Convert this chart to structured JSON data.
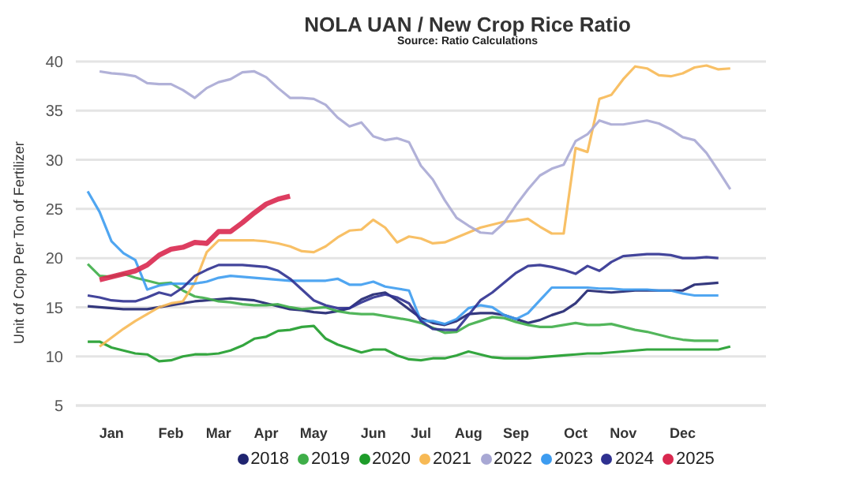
{
  "chart_data": {
    "type": "line",
    "title": "NOLA UAN / New Crop Rice Ratio",
    "subtitle": "Source: Ratio Calculations",
    "ylabel": "Unit of Crop Per Ton of Fertilizer",
    "categories": [
      null,
      null,
      null,
      "Jan",
      null,
      null,
      null,
      null,
      "Feb",
      null,
      null,
      null,
      "Mar",
      null,
      null,
      null,
      "Apr",
      null,
      null,
      null,
      "May",
      null,
      null,
      null,
      null,
      "Jun",
      null,
      null,
      null,
      "Jul",
      null,
      null,
      null,
      "Aug",
      null,
      null,
      null,
      "Sep",
      null,
      null,
      null,
      null,
      "Oct",
      null,
      null,
      null,
      "Nov",
      null,
      null,
      null,
      null,
      "Dec",
      null,
      null,
      null,
      null,
      null,
      null,
      null
    ],
    "ylim": [
      5,
      40
    ],
    "yticks": [
      5,
      10,
      15,
      20,
      25,
      30,
      35,
      40
    ],
    "grid": "y",
    "legend": "bottom",
    "marker": "none",
    "line_style": "solid",
    "series": [
      {
        "name": "2018",
        "color": "#1f2470",
        "values": [
          null,
          15.1,
          15.0,
          14.9,
          14.8,
          14.8,
          14.8,
          15.0,
          15.2,
          15.4,
          15.6,
          15.7,
          15.8,
          15.9,
          15.8,
          15.7,
          15.4,
          15.1,
          14.8,
          14.7,
          14.5,
          14.4,
          14.6,
          14.9,
          15.8,
          16.3,
          16.5,
          15.7,
          14.8,
          13.9,
          13.4,
          13.2,
          13.6,
          14.3,
          14.4,
          14.4,
          14.2,
          13.8,
          13.4,
          13.7,
          14.2,
          14.6,
          15.4,
          16.7,
          16.6,
          16.5,
          16.6,
          16.7,
          16.7,
          16.7,
          16.7,
          16.7,
          17.3,
          17.4,
          17.5,
          null,
          null,
          null,
          null
        ]
      },
      {
        "name": "2019",
        "color": "#3fae49",
        "values": [
          null,
          19.4,
          18.2,
          18.1,
          18.4,
          18.0,
          17.7,
          17.4,
          17.5,
          16.7,
          16.1,
          15.9,
          15.6,
          15.5,
          15.3,
          15.2,
          15.2,
          15.3,
          15.0,
          14.8,
          14.9,
          15.0,
          14.6,
          14.4,
          14.3,
          14.3,
          14.1,
          13.9,
          13.7,
          13.4,
          12.9,
          12.4,
          12.5,
          13.2,
          13.6,
          14.0,
          13.9,
          13.5,
          13.2,
          13.0,
          13.0,
          13.2,
          13.4,
          13.2,
          13.2,
          13.3,
          13.0,
          12.7,
          12.5,
          12.2,
          11.9,
          11.7,
          11.6,
          11.6,
          11.6,
          null,
          null,
          null,
          null
        ]
      },
      {
        "name": "2020",
        "color": "#1e9c2a",
        "values": [
          null,
          11.5,
          11.5,
          10.9,
          10.6,
          10.3,
          10.2,
          9.5,
          9.6,
          10.0,
          10.2,
          10.2,
          10.3,
          10.6,
          11.1,
          11.8,
          12.0,
          12.6,
          12.7,
          13.0,
          13.1,
          11.8,
          11.2,
          10.8,
          10.4,
          10.7,
          10.7,
          10.1,
          9.7,
          9.6,
          9.8,
          9.8,
          10.1,
          10.5,
          10.2,
          9.9,
          9.8,
          9.8,
          9.8,
          9.9,
          10.0,
          10.1,
          10.2,
          10.3,
          10.3,
          10.4,
          10.5,
          10.6,
          10.7,
          10.7,
          10.7,
          10.7,
          10.7,
          10.7,
          10.7,
          11.0,
          null,
          null,
          null
        ]
      },
      {
        "name": "2021",
        "color": "#f7b955",
        "values": [
          null,
          null,
          11.0,
          11.9,
          12.8,
          13.6,
          14.3,
          15.0,
          15.4,
          15.6,
          17.5,
          20.6,
          21.8,
          21.8,
          21.8,
          21.8,
          21.7,
          21.5,
          21.2,
          20.7,
          20.6,
          21.2,
          22.1,
          22.8,
          22.9,
          23.9,
          23.1,
          21.6,
          22.2,
          22.0,
          21.5,
          21.6,
          22.1,
          22.6,
          23.1,
          23.4,
          23.7,
          23.8,
          24.0,
          23.2,
          22.5,
          22.5,
          31.2,
          30.8,
          36.2,
          36.6,
          38.2,
          39.5,
          39.3,
          38.6,
          38.5,
          38.8,
          39.4,
          39.6,
          39.2,
          39.3,
          null,
          null,
          null
        ]
      },
      {
        "name": "2022",
        "color": "#a8a8d4",
        "values": [
          null,
          null,
          39.0,
          38.8,
          38.7,
          38.5,
          37.8,
          37.7,
          37.7,
          37.1,
          36.3,
          37.3,
          37.9,
          38.2,
          38.9,
          39.0,
          38.4,
          37.3,
          36.3,
          36.3,
          36.2,
          35.6,
          34.3,
          33.4,
          33.8,
          32.4,
          32.0,
          32.2,
          31.8,
          29.4,
          28.0,
          25.9,
          24.1,
          23.3,
          22.6,
          22.5,
          23.6,
          25.4,
          27.0,
          28.4,
          29.1,
          29.5,
          31.9,
          32.6,
          34.0,
          33.6,
          33.6,
          33.8,
          34.0,
          33.7,
          33.1,
          32.3,
          32.0,
          30.7,
          28.9,
          27.0,
          null,
          null,
          null
        ]
      },
      {
        "name": "2023",
        "color": "#3d9cf0",
        "values": [
          null,
          26.8,
          24.7,
          21.7,
          20.5,
          19.8,
          16.8,
          17.2,
          17.4,
          17.4,
          17.4,
          17.6,
          18.0,
          18.2,
          18.1,
          18.0,
          17.9,
          17.8,
          17.7,
          17.7,
          17.7,
          17.7,
          17.9,
          17.3,
          17.3,
          17.6,
          17.1,
          16.9,
          16.7,
          13.6,
          13.6,
          13.3,
          13.8,
          14.9,
          15.2,
          15.0,
          14.2,
          13.8,
          14.4,
          15.7,
          17.0,
          17.0,
          17.0,
          17.0,
          16.9,
          16.9,
          16.8,
          16.8,
          16.8,
          16.7,
          16.7,
          16.4,
          16.2,
          16.2,
          16.2,
          null,
          null,
          null,
          null
        ]
      },
      {
        "name": "2024",
        "color": "#2f3190",
        "values": [
          null,
          16.2,
          16.0,
          15.7,
          15.6,
          15.6,
          16.0,
          16.5,
          16.2,
          17.0,
          18.2,
          18.8,
          19.3,
          19.3,
          19.3,
          19.2,
          19.1,
          18.7,
          17.9,
          16.8,
          15.7,
          15.2,
          14.9,
          14.9,
          15.5,
          16.0,
          16.3,
          16.0,
          15.4,
          13.6,
          12.8,
          12.7,
          12.7,
          14.2,
          15.7,
          16.5,
          17.5,
          18.5,
          19.2,
          19.3,
          19.1,
          18.8,
          18.4,
          19.2,
          18.7,
          19.6,
          20.2,
          20.3,
          20.4,
          20.4,
          20.3,
          20.0,
          20.0,
          20.1,
          20.0,
          null,
          null,
          null,
          null
        ]
      },
      {
        "name": "2025",
        "color": "#d9284f",
        "values": [
          null,
          null,
          17.8,
          18.1,
          18.4,
          18.7,
          19.3,
          20.3,
          20.9,
          21.1,
          21.6,
          21.5,
          22.7,
          22.7,
          23.6,
          24.6,
          25.5,
          26.0,
          26.3,
          null,
          null,
          null,
          null,
          null,
          null,
          null,
          null,
          null,
          null,
          null,
          null,
          null,
          null,
          null,
          null,
          null,
          null,
          null,
          null,
          null,
          null,
          null,
          null,
          null,
          null,
          null,
          null,
          null,
          null,
          null,
          null,
          null,
          null,
          null,
          null,
          null,
          null,
          null,
          null
        ]
      }
    ]
  }
}
